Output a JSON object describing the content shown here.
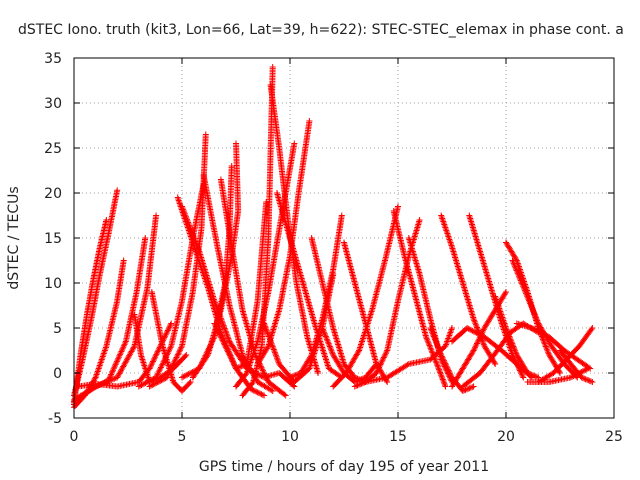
{
  "chart_data": {
    "type": "scatter",
    "title": "dSTEC Iono. truth (kit3, Lon=66, Lat=39, h=622): STEC-STEC_elemax in phase cont. a",
    "xlabel": "GPS time / hours of day 195 of year 2011",
    "ylabel": "dSTEC  / TECUs",
    "xlim": [
      0,
      25
    ],
    "ylim": [
      -5,
      35
    ],
    "xticks": [
      0,
      5,
      10,
      15,
      20,
      25
    ],
    "yticks": [
      -5,
      0,
      5,
      10,
      15,
      20,
      25,
      30,
      35
    ],
    "grid": true,
    "marker": "+",
    "color": "#ff0000",
    "series": [
      {
        "x": [
          0.0,
          0.3,
          0.6,
          0.9,
          1.2,
          1.5
        ],
        "y": [
          -3.5,
          2.0,
          6.5,
          10.5,
          14.0,
          17.0
        ]
      },
      {
        "x": [
          0.0,
          0.4,
          0.8,
          1.2,
          1.6,
          2.0
        ],
        "y": [
          -2.5,
          1.5,
          6.0,
          11.0,
          15.5,
          20.3
        ]
      },
      {
        "x": [
          0.0,
          0.5,
          1.0,
          1.5,
          2.0,
          2.3
        ],
        "y": [
          -3.8,
          -2.5,
          -0.5,
          3.0,
          8.0,
          12.5
        ]
      },
      {
        "x": [
          0.0,
          0.8,
          1.6,
          2.4,
          2.9,
          3.3
        ],
        "y": [
          -3.0,
          -1.8,
          -0.8,
          3.5,
          9.0,
          15.0
        ]
      },
      {
        "x": [
          0.0,
          1.0,
          2.0,
          2.8,
          3.4,
          3.8
        ],
        "y": [
          -3.2,
          -1.5,
          -0.5,
          3.0,
          9.5,
          17.5
        ]
      },
      {
        "x": [
          0.2,
          1.0,
          2.0,
          3.0,
          3.5,
          4.0,
          4.5
        ],
        "y": [
          -1.5,
          -1.2,
          -1.5,
          -1.0,
          0.5,
          3.0,
          5.5
        ]
      },
      {
        "x": [
          2.8,
          3.1,
          3.5,
          4.0,
          4.6,
          5.2
        ],
        "y": [
          6.5,
          2.0,
          -1.0,
          -0.5,
          0.5,
          2.0
        ]
      },
      {
        "x": [
          3.6,
          4.1,
          4.6,
          5.0,
          5.4
        ],
        "y": [
          9.0,
          3.0,
          -1.0,
          -2.0,
          -1.0
        ]
      },
      {
        "x": [
          3.0,
          3.8,
          4.5,
          5.0,
          5.5,
          6.0
        ],
        "y": [
          -1.5,
          -0.5,
          3.0,
          8.0,
          15.0,
          21.0
        ]
      },
      {
        "x": [
          3.5,
          4.3,
          5.0,
          5.5,
          5.9,
          6.1
        ],
        "y": [
          -1.5,
          -0.5,
          3.0,
          9.0,
          16.0,
          26.5
        ]
      },
      {
        "x": [
          4.8,
          5.5,
          6.2,
          6.8,
          7.5,
          8.2,
          8.8
        ],
        "y": [
          19.5,
          14.5,
          9.5,
          4.5,
          0.5,
          -1.8,
          -2.5
        ]
      },
      {
        "x": [
          5.0,
          5.8,
          6.5,
          7.2,
          8.0,
          8.8,
          9.5,
          10.2
        ],
        "y": [
          18.5,
          13.5,
          8.0,
          3.5,
          0.5,
          -0.5,
          0.0,
          -1.5
        ]
      },
      {
        "x": [
          6.0,
          6.6,
          7.2,
          7.8,
          8.5,
          9.2
        ],
        "y": [
          22.0,
          14.5,
          7.5,
          2.0,
          -1.0,
          -2.0
        ]
      },
      {
        "x": [
          6.8,
          7.3,
          7.8,
          8.4,
          9.0,
          9.8
        ],
        "y": [
          21.5,
          14.0,
          7.0,
          2.0,
          -1.0,
          -2.5
        ]
      },
      {
        "x": [
          5.5,
          6.2,
          6.8,
          7.3,
          7.6,
          7.5
        ],
        "y": [
          -0.5,
          2.0,
          7.0,
          13.0,
          18.0,
          25.5
        ]
      },
      {
        "x": [
          5.0,
          5.8,
          6.5,
          7.0,
          7.2,
          7.3
        ],
        "y": [
          -0.5,
          0.5,
          4.0,
          10.0,
          16.0,
          23.0
        ]
      },
      {
        "x": [
          6.5,
          7.0,
          7.5,
          8.0,
          8.5,
          8.9
        ],
        "y": [
          5.5,
          3.0,
          0.5,
          1.0,
          8.0,
          19.0
        ]
      },
      {
        "x": [
          7.5,
          8.0,
          8.5,
          9.0,
          9.4,
          9.8,
          10.2
        ],
        "y": [
          -1.5,
          0.0,
          3.5,
          9.0,
          14.5,
          20.0,
          25.5
        ]
      },
      {
        "x": [
          7.8,
          8.3,
          8.7,
          9.0,
          9.2
        ],
        "y": [
          -2.5,
          -1.0,
          3.0,
          15.0,
          34.0
        ]
      },
      {
        "x": [
          9.1,
          9.5,
          9.9,
          10.3,
          10.8,
          11.3
        ],
        "y": [
          32.0,
          25.0,
          17.0,
          10.0,
          4.0,
          0.0
        ]
      },
      {
        "x": [
          8.5,
          9.0,
          9.5,
          10.0,
          10.4,
          10.9
        ],
        "y": [
          1.0,
          3.0,
          7.0,
          13.0,
          20.0,
          28.0
        ]
      },
      {
        "x": [
          9.4,
          10.0,
          10.6,
          11.2,
          11.8,
          12.4
        ],
        "y": [
          20.0,
          15.0,
          10.0,
          5.0,
          0.5,
          -0.5
        ]
      },
      {
        "x": [
          8.8,
          9.5,
          10.2,
          10.9,
          11.5,
          12.0
        ],
        "y": [
          5.5,
          1.0,
          -1.0,
          0.5,
          5.0,
          11.0
        ]
      },
      {
        "x": [
          10.0,
          10.5,
          11.0,
          11.5,
          12.0,
          12.4
        ],
        "y": [
          -0.5,
          0.0,
          2.0,
          6.0,
          11.5,
          17.5
        ]
      },
      {
        "x": [
          11.0,
          11.5,
          12.0,
          12.5,
          13.0,
          13.5
        ],
        "y": [
          15.0,
          10.0,
          5.0,
          1.0,
          -0.5,
          -1.0
        ]
      },
      {
        "x": [
          12.5,
          13.0,
          13.5,
          14.0,
          14.5
        ],
        "y": [
          14.5,
          10.0,
          5.5,
          1.0,
          -1.0
        ]
      },
      {
        "x": [
          11.5,
          12.0,
          12.5,
          13.0,
          13.5,
          14.0
        ],
        "y": [
          5.0,
          2.0,
          0.0,
          -1.0,
          -0.5,
          1.0
        ]
      },
      {
        "x": [
          12.0,
          12.6,
          13.2,
          13.8,
          14.4,
          15.0
        ],
        "y": [
          -1.5,
          0.0,
          2.5,
          7.0,
          12.5,
          18.5
        ]
      },
      {
        "x": [
          13.0,
          13.5,
          14.0,
          14.5,
          15.0,
          15.5,
          16.0
        ],
        "y": [
          -1.5,
          -1.0,
          0.0,
          2.5,
          8.0,
          13.0,
          17.0
        ]
      },
      {
        "x": [
          14.8,
          15.3,
          15.8,
          16.3,
          16.8,
          17.2
        ],
        "y": [
          18.0,
          13.0,
          8.5,
          4.0,
          1.0,
          -1.5
        ]
      },
      {
        "x": [
          15.5,
          16.0,
          16.5,
          17.0,
          17.5
        ],
        "y": [
          15.0,
          11.0,
          6.0,
          1.5,
          -1.0
        ]
      },
      {
        "x": [
          13.5,
          14.5,
          15.5,
          16.5,
          17.2,
          17.5
        ],
        "y": [
          -1.0,
          -0.5,
          1.0,
          1.5,
          3.0,
          5.0
        ]
      },
      {
        "x": [
          16.5,
          17.0,
          17.5,
          18.0,
          18.5
        ],
        "y": [
          5.0,
          2.0,
          -0.5,
          -2.0,
          -1.5
        ]
      },
      {
        "x": [
          17.0,
          17.5,
          18.0,
          18.5,
          19.0,
          19.5
        ],
        "y": [
          17.5,
          14.0,
          10.0,
          6.0,
          3.0,
          1.0
        ]
      },
      {
        "x": [
          18.3,
          18.8,
          19.3,
          19.8,
          20.3,
          20.8
        ],
        "y": [
          17.5,
          13.5,
          9.5,
          5.5,
          2.0,
          -0.5
        ]
      },
      {
        "x": [
          17.5,
          18.0,
          18.5,
          19.0,
          19.5,
          20.0
        ],
        "y": [
          -1.5,
          0.5,
          2.5,
          5.0,
          7.0,
          9.0
        ]
      },
      {
        "x": [
          17.5,
          18.2,
          19.0,
          19.8,
          20.5,
          21.2
        ],
        "y": [
          3.5,
          5.0,
          4.0,
          2.5,
          1.0,
          -0.5
        ]
      },
      {
        "x": [
          18.0,
          18.8,
          19.6,
          20.2,
          20.8,
          21.5
        ],
        "y": [
          -1.5,
          0.0,
          2.5,
          4.5,
          5.5,
          4.5
        ]
      },
      {
        "x": [
          20.0,
          20.5,
          21.0,
          21.5,
          22.0,
          22.5
        ],
        "y": [
          14.5,
          12.5,
          9.0,
          5.0,
          2.0,
          0.0
        ]
      },
      {
        "x": [
          20.3,
          20.9,
          21.5,
          22.1,
          22.7,
          23.3
        ],
        "y": [
          12.5,
          9.0,
          5.5,
          3.0,
          1.0,
          -0.5
        ]
      },
      {
        "x": [
          19.5,
          20.0,
          20.5,
          21.0,
          21.5
        ],
        "y": [
          8.5,
          5.0,
          2.0,
          0.0,
          -0.5
        ]
      },
      {
        "x": [
          20.5,
          21.2,
          22.0,
          22.7,
          23.3,
          23.9
        ],
        "y": [
          5.5,
          5.0,
          4.0,
          2.5,
          1.5,
          0.5
        ]
      },
      {
        "x": [
          21.5,
          22.2,
          22.8,
          23.4,
          24.0
        ],
        "y": [
          -1.0,
          0.0,
          1.5,
          3.0,
          5.0
        ]
      },
      {
        "x": [
          22.5,
          23.0,
          23.5,
          24.0
        ],
        "y": [
          2.5,
          1.0,
          -0.5,
          -1.0
        ]
      },
      {
        "x": [
          21.0,
          22.0,
          23.0,
          23.8
        ],
        "y": [
          -1.0,
          -1.0,
          -0.5,
          0.5
        ]
      }
    ]
  }
}
